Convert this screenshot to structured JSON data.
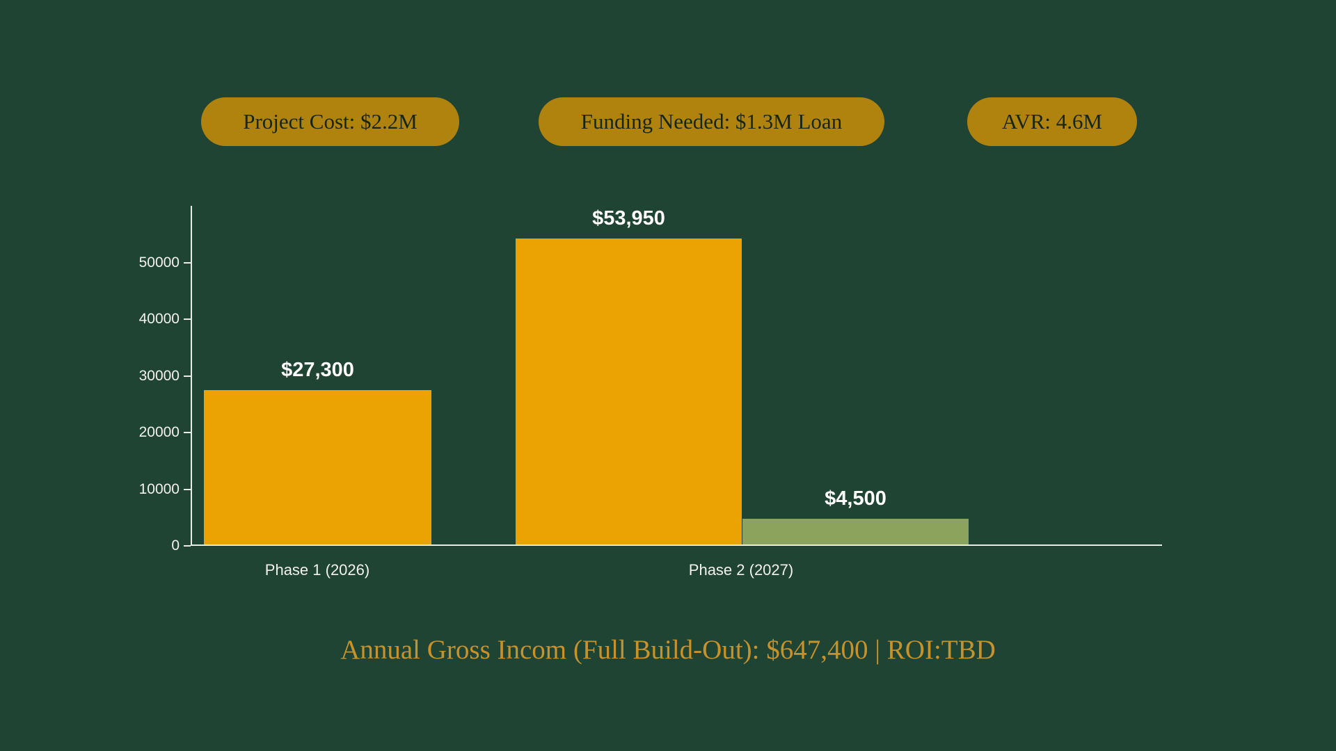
{
  "colors": {
    "background": "#1f4433",
    "pill": "#b0830e",
    "pill_text": "#17260f",
    "orange": "#eba303",
    "green": "#8ba35c",
    "axis": "#e9ece7",
    "tick_text": "#f2f2ee",
    "bar_label": "#ffffff",
    "footer": "#c8922b"
  },
  "badges": [
    {
      "label": "Project Cost: $2.2M"
    },
    {
      "label": "Funding Needed: $1.3M Loan"
    },
    {
      "label": "AVR: 4.6M"
    }
  ],
  "footer": {
    "title": "Annual Gross Incom (Full Build-Out): $647,400 | ROI:TBD"
  },
  "chart_data": {
    "type": "bar",
    "title": "",
    "xlabel": "",
    "ylabel": "",
    "categories": [
      "Phase 1 (2026)",
      "Phase 2 (2027)"
    ],
    "bars": [
      {
        "category": "Phase 1 (2026)",
        "value": 27300,
        "label": "$27,300",
        "color": "orange"
      },
      {
        "category": "Phase 2 (2027)",
        "value": 53950,
        "label": "$53,950",
        "color": "orange"
      },
      {
        "category": "Phase 2 (2027)",
        "value": 4500,
        "label": "$4,500",
        "color": "green"
      }
    ],
    "yticks": [
      0,
      10000,
      20000,
      30000,
      40000,
      50000
    ],
    "ylim": [
      0,
      60000
    ],
    "grid": false,
    "legend": false
  }
}
